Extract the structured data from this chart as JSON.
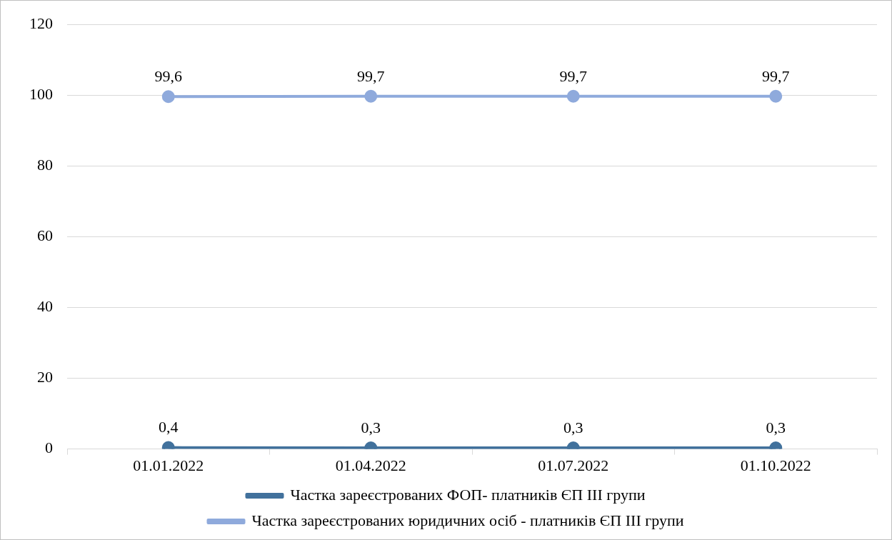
{
  "chart_data": {
    "type": "line",
    "categories": [
      "01.01.2022",
      "01.04.2022",
      "01.07.2022",
      "01.10.2022"
    ],
    "series": [
      {
        "name": "Частка зареєстрованих ФОП- платників ЄП ІІІ групи",
        "color": "#41719c",
        "values": [
          0.4,
          0.3,
          0.3,
          0.3
        ],
        "value_labels": [
          "0,4",
          "0,3",
          "0,3",
          "0,3"
        ]
      },
      {
        "name": "Частка зареєстрованих юридичних осіб - платників ЄП ІІІ групи",
        "color": "#8faadc",
        "values": [
          99.6,
          99.7,
          99.7,
          99.7
        ],
        "value_labels": [
          "99,6",
          "99,7",
          "99,7",
          "99,7"
        ]
      }
    ],
    "ylim": [
      0,
      120
    ],
    "yticks": [
      0,
      20,
      40,
      60,
      80,
      100,
      120
    ],
    "grid": "y",
    "legend": "bottom",
    "marker": "circle",
    "line_style": "solid"
  }
}
